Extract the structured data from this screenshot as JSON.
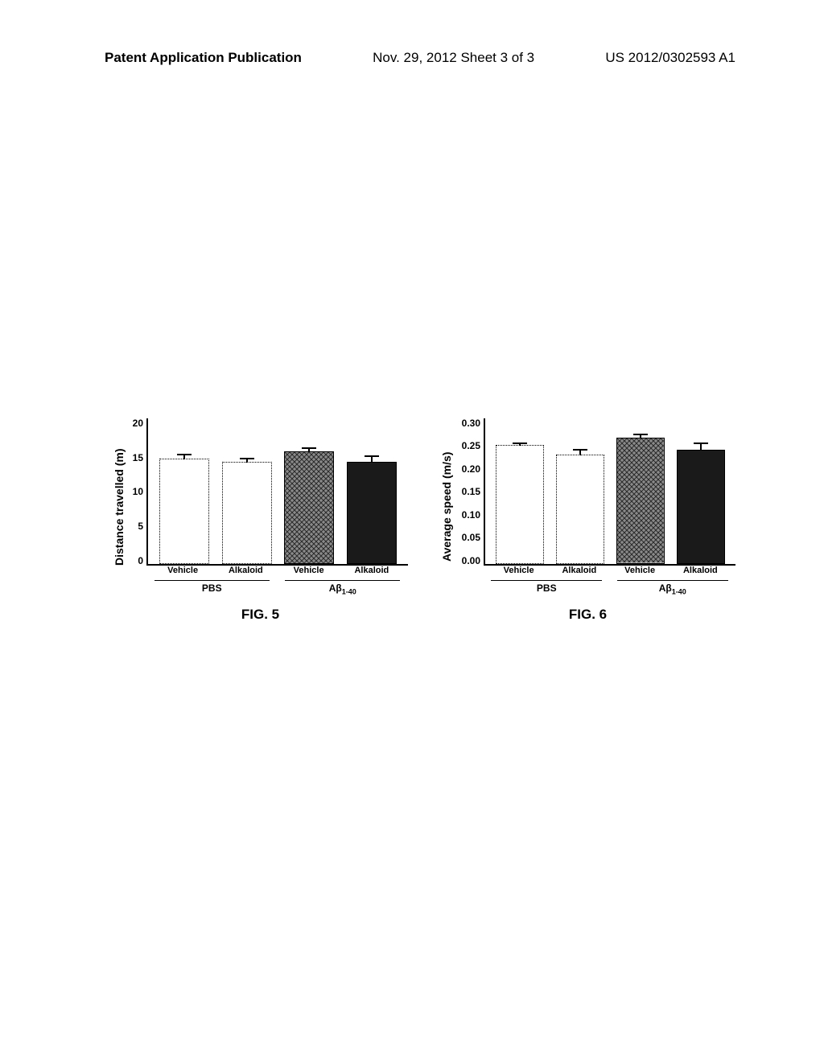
{
  "header": {
    "left": "Patent Application Publication",
    "center": "Nov. 29, 2012  Sheet 3 of 3",
    "right": "US 2012/0302593 A1"
  },
  "figures": {
    "fig5": {
      "type": "bar",
      "label": "FIG. 5",
      "y_label": "Distance travelled (m)",
      "y_ticks": [
        "20",
        "15",
        "10",
        "5",
        "0"
      ],
      "y_max": 20,
      "bar_labels": [
        "Vehicle",
        "Alkaloid",
        "Vehicle",
        "Alkaloid"
      ],
      "group_labels": [
        "PBS",
        "Aβ"
      ],
      "group_sub": "1-40",
      "bars": [
        {
          "value": 14.5,
          "err": 0.6,
          "fill": "dotted-outline"
        },
        {
          "value": 14.0,
          "err": 0.6,
          "fill": "dotted-outline"
        },
        {
          "value": 15.5,
          "err": 0.5,
          "fill": "crosshatch"
        },
        {
          "value": 14.0,
          "err": 0.9,
          "fill": "solid"
        }
      ],
      "yaxis_width": 22
    },
    "fig6": {
      "type": "bar",
      "label": "FIG. 6",
      "y_label": "Average speed (m/s)",
      "y_ticks": [
        "0.30",
        "0.25",
        "0.20",
        "0.15",
        "0.10",
        "0.05",
        "0.00"
      ],
      "y_max": 0.3,
      "bar_labels": [
        "Vehicle",
        "Alkaloid",
        "Vehicle",
        "Alkaloid"
      ],
      "group_labels": [
        "PBS",
        "Aβ"
      ],
      "group_sub": "1-40",
      "bars": [
        {
          "value": 0.245,
          "err": 0.005,
          "fill": "dotted-outline"
        },
        {
          "value": 0.225,
          "err": 0.012,
          "fill": "dotted-outline"
        },
        {
          "value": 0.26,
          "err": 0.008,
          "fill": "crosshatch"
        },
        {
          "value": 0.235,
          "err": 0.015,
          "fill": "solid"
        }
      ],
      "yaxis_width": 34
    }
  },
  "styles": {
    "fill_colors": {
      "dotted-outline": {
        "background": "#ffffff",
        "border": "1.5px dotted #000000"
      },
      "crosshatch": {
        "background": "#6f6f6f",
        "border": "1.5px solid #000000",
        "pattern": true
      },
      "solid": {
        "background": "#1a1a1a",
        "border": "1.5px solid #000000"
      }
    }
  }
}
